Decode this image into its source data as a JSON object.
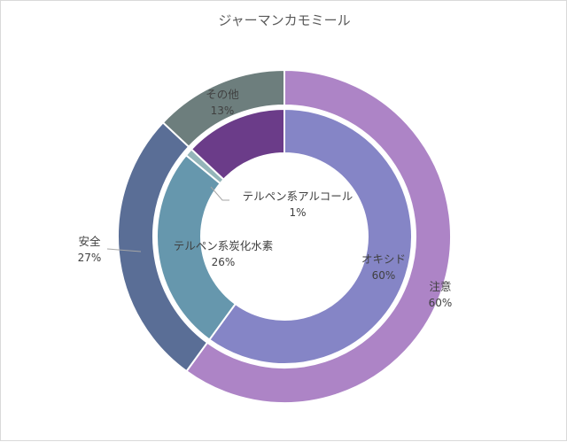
{
  "chart_data": {
    "type": "doughnut",
    "title": "ジャーマンカモミール",
    "rings": [
      {
        "name": "outer",
        "slices": [
          {
            "label": "注意",
            "value": 60,
            "display": "60%",
            "color": "#ad84c6"
          },
          {
            "label": "安全",
            "value": 27,
            "display": "27%",
            "color": "#5a6e96"
          },
          {
            "label": "その他",
            "value": 13,
            "display": "13%",
            "color": "#6d7e7d"
          }
        ]
      },
      {
        "name": "inner",
        "slices": [
          {
            "label": "オキシド",
            "value": 60,
            "display": "60%",
            "color": "#8585c6"
          },
          {
            "label": "テルペン系炭化水素",
            "value": 26,
            "display": "26%",
            "color": "#6697ad"
          },
          {
            "label": "テルペン系アルコール",
            "value": 1,
            "display": "1%",
            "color": "#94b5b9"
          },
          {
            "label": "その他",
            "value": 13,
            "display": "",
            "color": "#6b3c89"
          }
        ]
      }
    ],
    "start_angle": "12 o'clock, clockwise",
    "legend": "none (data labels)"
  }
}
